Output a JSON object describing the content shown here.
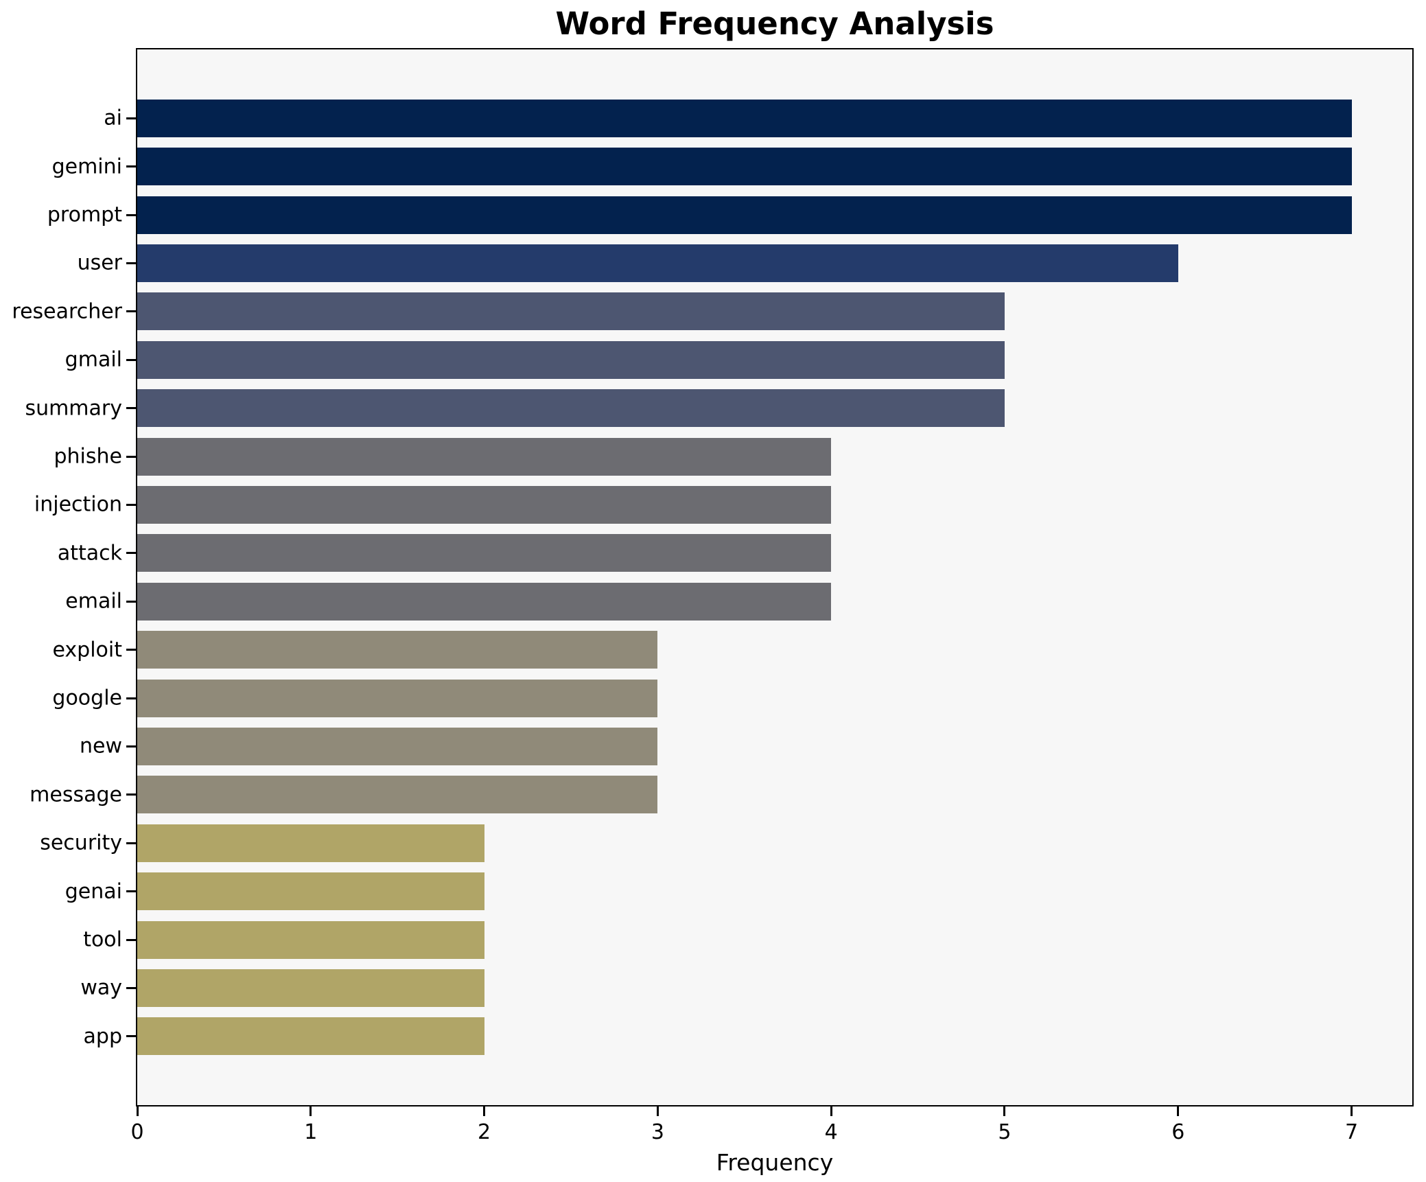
{
  "chart_data": {
    "type": "bar",
    "orientation": "horizontal",
    "title": "Word Frequency Analysis",
    "xlabel": "Frequency",
    "ylabel": "",
    "categories": [
      "ai",
      "gemini",
      "prompt",
      "user",
      "researcher",
      "gmail",
      "summary",
      "phishe",
      "injection",
      "attack",
      "email",
      "exploit",
      "google",
      "new",
      "message",
      "security",
      "genai",
      "tool",
      "way",
      "app"
    ],
    "values": [
      7,
      7,
      7,
      6,
      5,
      5,
      5,
      4,
      4,
      4,
      4,
      3,
      3,
      3,
      3,
      2,
      2,
      2,
      2,
      2
    ],
    "bar_colors": [
      "#03224e",
      "#03224e",
      "#03224e",
      "#243b6b",
      "#4d5671",
      "#4d5671",
      "#4d5671",
      "#6c6c71",
      "#6c6c71",
      "#6c6c71",
      "#6c6c71",
      "#908a79",
      "#908a79",
      "#908a79",
      "#908a79",
      "#b0a567",
      "#b0a567",
      "#b0a567",
      "#b0a567",
      "#b0a567"
    ],
    "xlim": [
      0,
      7.35
    ],
    "xticks": [
      "0",
      "1",
      "2",
      "3",
      "4",
      "5",
      "6",
      "7"
    ],
    "grid": false,
    "legend_position": "none",
    "plot_background": "#f7f7f7",
    "figure_background": "#ffffff",
    "spine_color": "#000000"
  }
}
